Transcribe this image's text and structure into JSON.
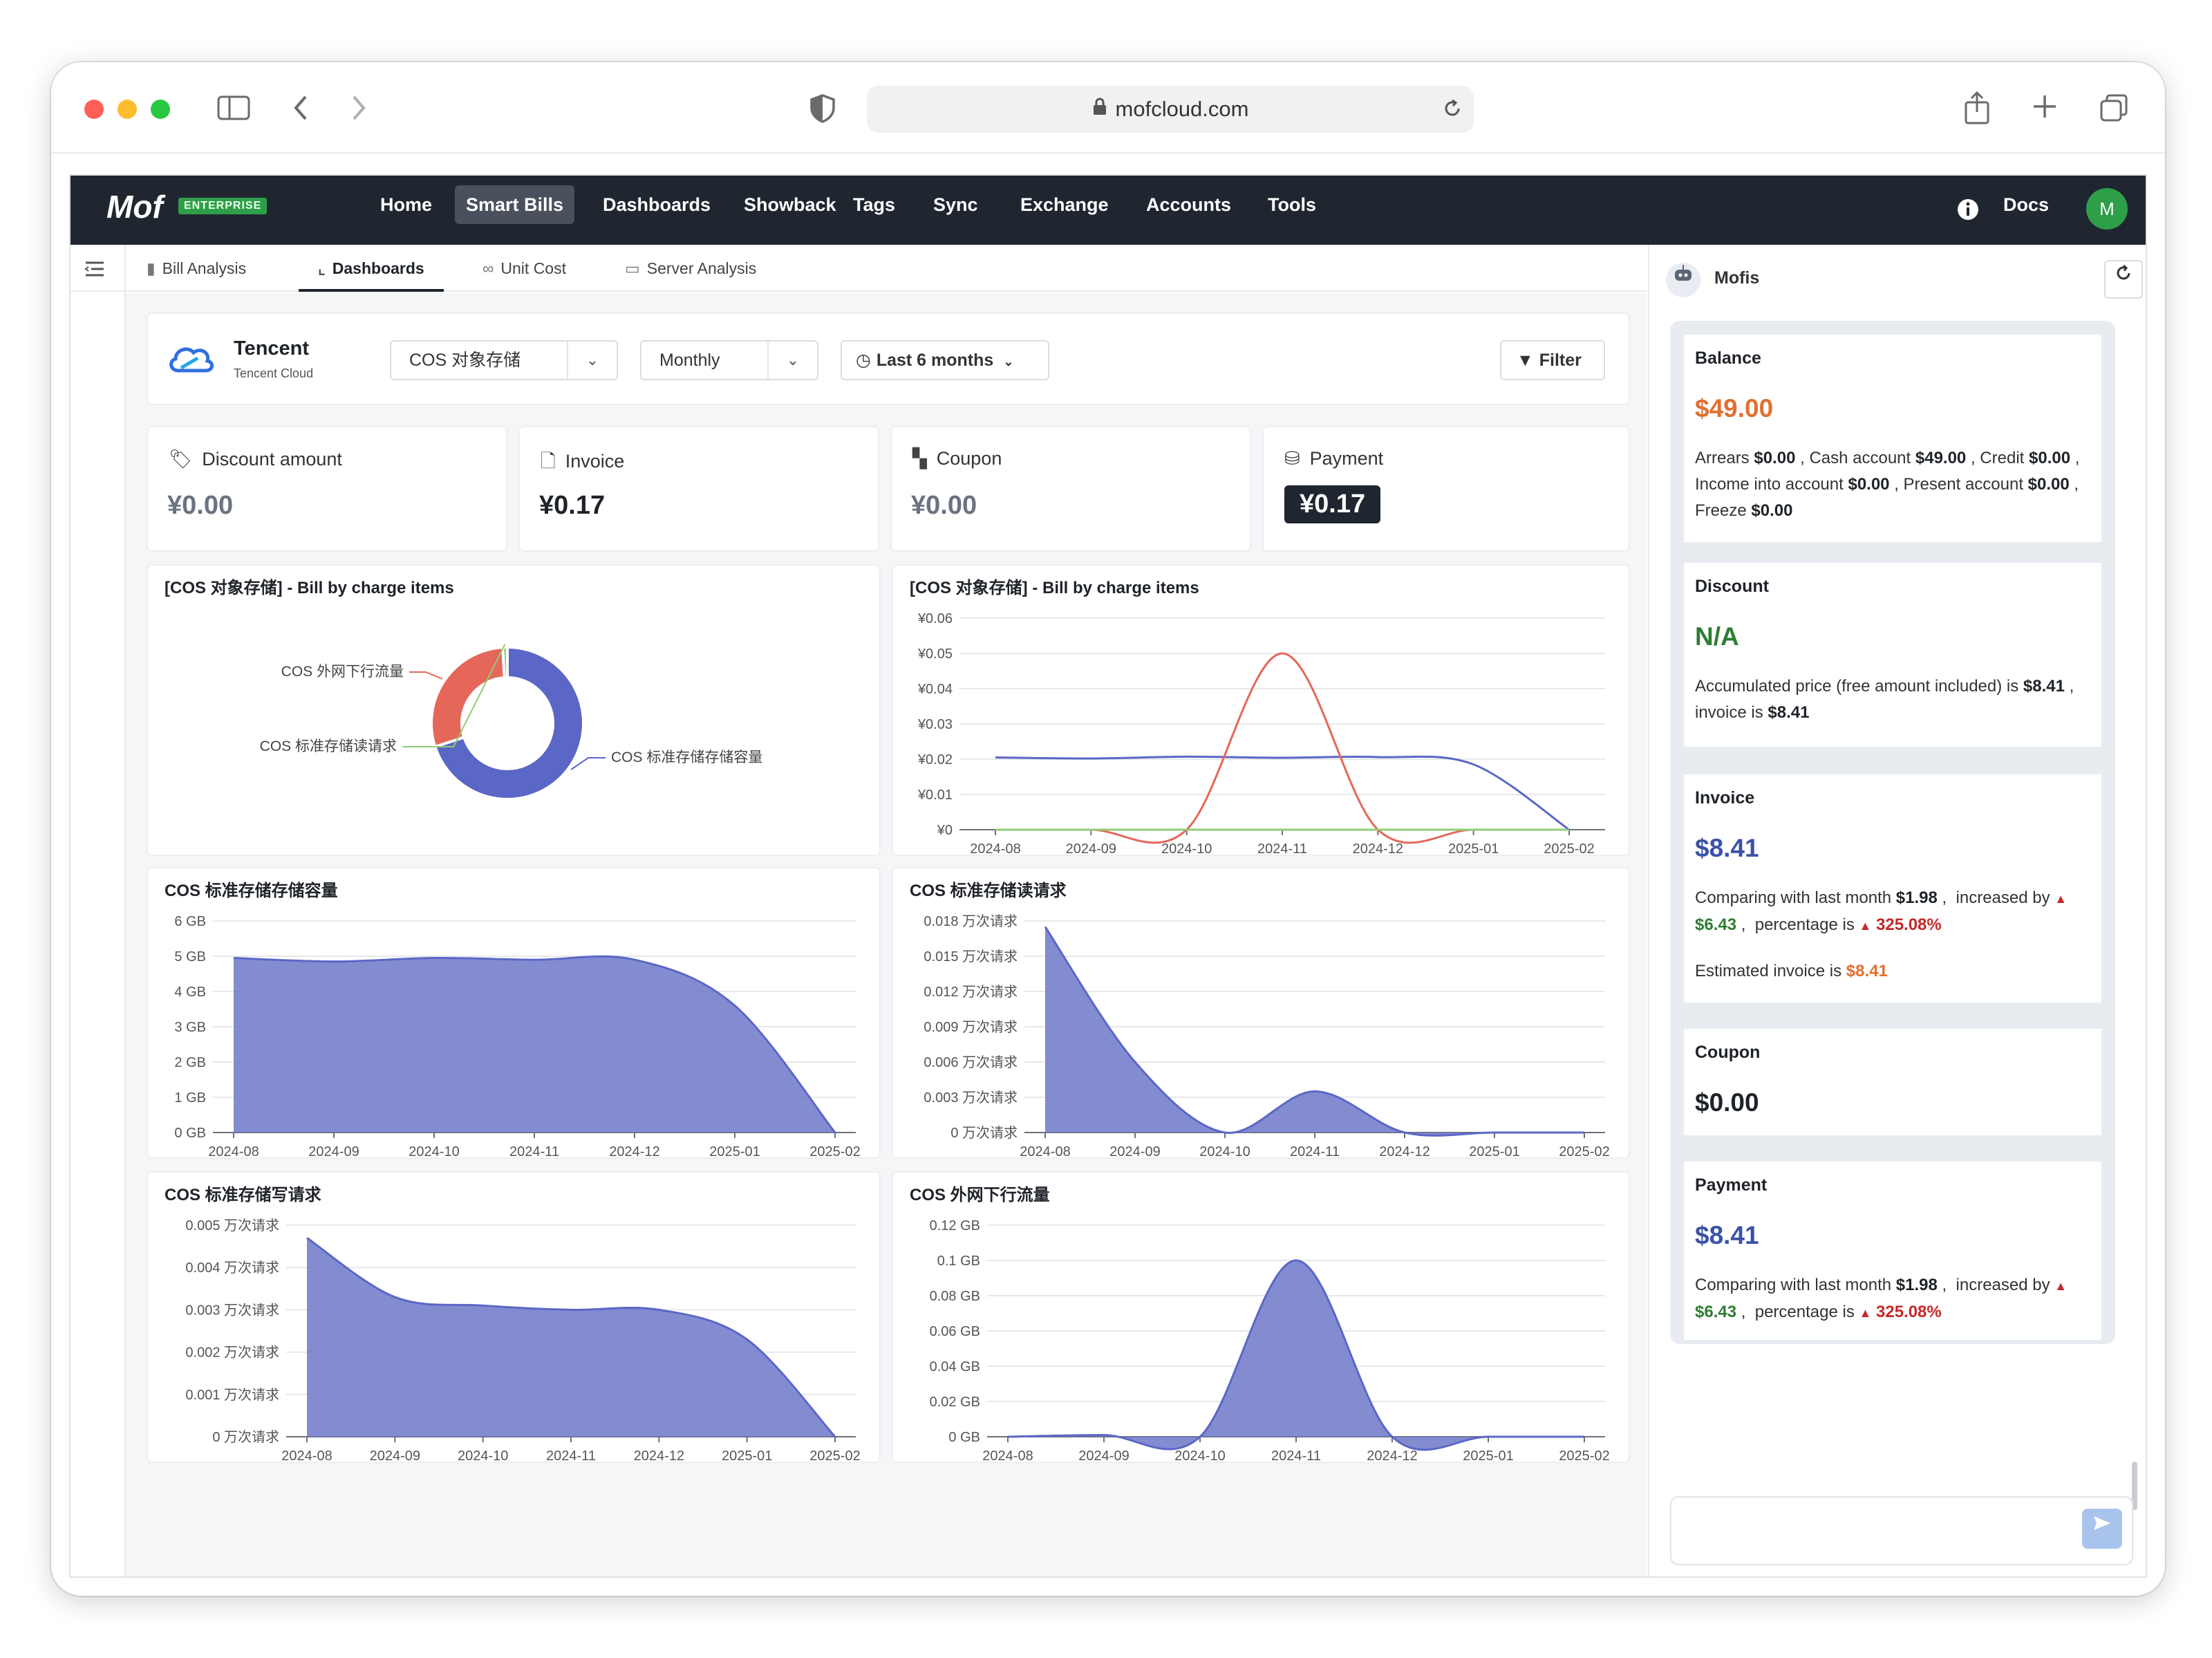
{
  "browser": {
    "url": "mofcloud.com"
  },
  "app": {
    "logo": "Mof",
    "badge": "ENTERPRISE",
    "docs_label": "Docs",
    "avatar": "M"
  },
  "nav": [
    "Home",
    "Smart Bills",
    "Dashboards",
    "Showback",
    "Tags",
    "Sync",
    "Exchange",
    "Accounts",
    "Tools"
  ],
  "subnav": [
    "Bill Analysis",
    "Dashboards",
    "Unit Cost",
    "Server Analysis"
  ],
  "filters": {
    "provider_name": "Tencent",
    "provider_sub": "Tencent Cloud",
    "service": "COS 对象存储",
    "granularity": "Monthly",
    "range": "Last 6 months",
    "filter_button": "Filter"
  },
  "kpis": [
    {
      "label": "Discount amount",
      "value": "¥0.00"
    },
    {
      "label": "Invoice",
      "value": "¥0.17"
    },
    {
      "label": "Coupon",
      "value": "¥0.00"
    },
    {
      "label": "Payment",
      "value": "¥0.17"
    }
  ],
  "colors": {
    "accent": "#5b67c6",
    "red": "#e5675a",
    "nav": "#1f2630",
    "green": "#2e9e49",
    "orange": "#e07030"
  },
  "chart_data": [
    {
      "type": "pie",
      "title": "[COS 对象存储] - Bill by charge items",
      "labels": [
        "COS 标准存储存储容量",
        "COS 外网下行流量",
        "COS 标准存储读请求"
      ],
      "values": [
        70,
        29,
        1
      ],
      "colors": [
        "#5b67c6",
        "#e5675a",
        "#91cc75"
      ]
    },
    {
      "type": "line",
      "title": "[COS 对象存储] - Bill by charge items",
      "x": [
        "2024-08",
        "2024-09",
        "2024-10",
        "2024-11",
        "2024-12",
        "2025-01",
        "2025-02"
      ],
      "yticks": [
        "¥0",
        "¥0.01",
        "¥0.02",
        "¥0.03",
        "¥0.04",
        "¥0.05",
        "¥0.06"
      ],
      "ylim": [
        0,
        0.06
      ],
      "series": [
        {
          "values": [
            0.0205,
            0.0202,
            0.0207,
            0.0204,
            0.0206,
            0.0185,
            0
          ],
          "color": "#5b67c6"
        },
        {
          "values": [
            0,
            0,
            0,
            0.05,
            0,
            0,
            0
          ],
          "color": "#e5675a"
        },
        {
          "values": [
            0,
            0,
            0,
            0,
            0,
            0,
            0
          ],
          "color": "#91cc75"
        }
      ]
    },
    {
      "type": "area",
      "title": "COS 标准存储存储容量",
      "x": [
        "2024-08",
        "2024-09",
        "2024-10",
        "2024-11",
        "2024-12",
        "2025-01",
        "2025-02"
      ],
      "yticks": [
        "0 GB",
        "1 GB",
        "2 GB",
        "3 GB",
        "4 GB",
        "5 GB",
        "6 GB"
      ],
      "ylim": [
        0,
        6
      ],
      "values": [
        4.95,
        4.85,
        4.95,
        4.9,
        4.9,
        3.6,
        0
      ]
    },
    {
      "type": "area",
      "title": "COS 标准存储读请求",
      "x": [
        "2024-08",
        "2024-09",
        "2024-10",
        "2024-11",
        "2024-12",
        "2025-01",
        "2025-02"
      ],
      "yticks": [
        "0 万次请求",
        "0.003 万次请求",
        "0.006 万次请求",
        "0.009 万次请求",
        "0.012 万次请求",
        "0.015 万次请求",
        "0.018 万次请求"
      ],
      "ylim": [
        0,
        0.018
      ],
      "values": [
        0.0175,
        0.006,
        0,
        0.0035,
        0,
        0,
        0
      ]
    },
    {
      "type": "area",
      "title": "COS 标准存储写请求",
      "x": [
        "2024-08",
        "2024-09",
        "2024-10",
        "2024-11",
        "2024-12",
        "2025-01",
        "2025-02"
      ],
      "yticks": [
        "0 万次请求",
        "0.001 万次请求",
        "0.002 万次请求",
        "0.003 万次请求",
        "0.004 万次请求",
        "0.005 万次请求"
      ],
      "ylim": [
        0,
        0.005
      ],
      "values": [
        0.0047,
        0.0033,
        0.0031,
        0.003,
        0.003,
        0.0023,
        0
      ]
    },
    {
      "type": "area",
      "title": "COS 外网下行流量",
      "x": [
        "2024-08",
        "2024-09",
        "2024-10",
        "2024-11",
        "2024-12",
        "2025-01",
        "2025-02"
      ],
      "yticks": [
        "0 GB",
        "0.02 GB",
        "0.04 GB",
        "0.06 GB",
        "0.08 GB",
        "0.1 GB",
        "0.12 GB"
      ],
      "ylim": [
        0,
        0.12
      ],
      "values": [
        0,
        0.001,
        0,
        0.1,
        0,
        0,
        0
      ]
    }
  ],
  "assistant": {
    "name": "Mofis",
    "balance": {
      "title": "Balance",
      "value": "$49.00",
      "arrears_l": "Arrears",
      "arrears": "$0.00",
      "cash_l": "Cash account",
      "cash": "$49.00",
      "credit_l": "Credit",
      "credit": "$0.00",
      "income_l": "Income into account",
      "income": "$0.00",
      "present_l1": "Present",
      "present_l2": "account",
      "present": "$0.00",
      "freeze_l": "Freeze",
      "freeze": "$0.00"
    },
    "discount": {
      "title": "Discount",
      "value": "N/A",
      "text1": "Accumulated price (free amount included) is",
      "accumulated": "$8.41",
      "invoice_l": "invoice is",
      "invoice": "$8.41"
    },
    "invoice": {
      "title": "Invoice",
      "value": "$8.41",
      "comparing": "Comparing with last month",
      "last_month": "$1.98",
      "increased": "increased",
      "by": "by",
      "delta": "$6.43",
      "pct_l": "percentage is",
      "pct": "325.08%",
      "estimated_l": "Estimated invoice is",
      "estimated": "$8.41"
    },
    "coupon": {
      "title": "Coupon",
      "value": "$0.00"
    },
    "payment": {
      "title": "Payment",
      "value": "$8.41",
      "comparing": "Comparing with last month",
      "last_month": "$1.98",
      "increased": "increased",
      "by": "by",
      "delta": "$6.43",
      "pct_l": "percentage is",
      "pct": "325.08%"
    }
  }
}
